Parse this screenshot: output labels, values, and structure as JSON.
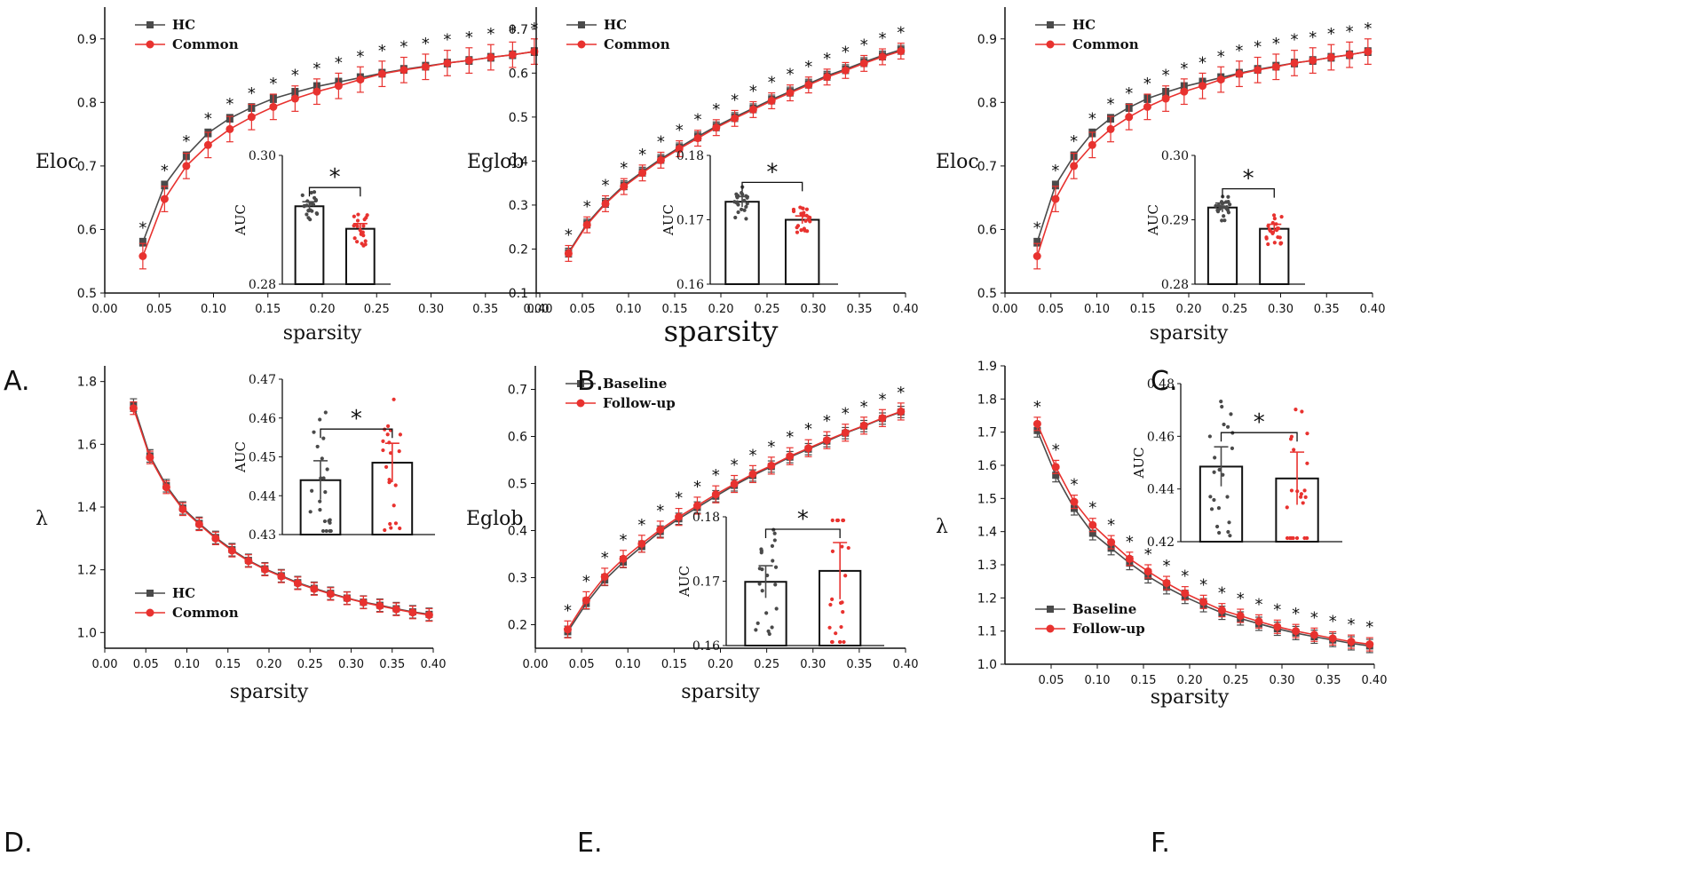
{
  "colors": {
    "hc": "#4a4a4a",
    "patient": "#e8322f",
    "axis": "#111111"
  },
  "x_values": [
    0.035,
    0.055,
    0.075,
    0.095,
    0.115,
    0.135,
    0.155,
    0.175,
    0.195,
    0.215,
    0.235,
    0.255,
    0.275,
    0.295,
    0.315,
    0.335,
    0.355,
    0.375,
    0.395
  ],
  "chart_data": [
    {
      "panel": "A.",
      "type": "line",
      "xlabel": "sparsity",
      "ylabel": "Eloc",
      "xlim": [
        0.0,
        0.4
      ],
      "ylim": [
        0.5,
        0.95
      ],
      "xticks": [
        "0.00",
        "0.05",
        "0.10",
        "0.15",
        "0.20",
        "0.25",
        "0.30",
        "0.35",
        "0.40"
      ],
      "yticks": [
        "0.5",
        "0.6",
        "0.7",
        "0.8",
        "0.9"
      ],
      "legend": [
        "HC",
        "Common"
      ],
      "legend_pos": "top-left",
      "series": [
        {
          "name": "HC",
          "values": [
            0.58,
            0.67,
            0.716,
            0.752,
            0.775,
            0.792,
            0.806,
            0.816,
            0.825,
            0.832,
            0.839,
            0.846,
            0.852,
            0.857,
            0.862,
            0.866,
            0.871,
            0.875,
            0.88
          ],
          "err": 0.006
        },
        {
          "name": "Common",
          "values": [
            0.558,
            0.648,
            0.7,
            0.733,
            0.758,
            0.777,
            0.793,
            0.806,
            0.817,
            0.826,
            0.836,
            0.845,
            0.851,
            0.856,
            0.862,
            0.866,
            0.871,
            0.875,
            0.88
          ],
          "err": 0.02
        }
      ],
      "stars": "*",
      "inset": {
        "ylabel": "AUC",
        "ylim": [
          0.28,
          0.3
        ],
        "yticks": [
          "0.28",
          "0.30"
        ],
        "bars": [
          0.2921,
          0.2886
        ],
        "errs": [
          0.0007,
          0.0008
        ],
        "sig": "*"
      }
    },
    {
      "panel": "B.",
      "type": "line",
      "xlabel": "sparsity",
      "ylabel": "Eglob",
      "xlim": [
        0.0,
        0.4
      ],
      "ylim": [
        0.1,
        0.75
      ],
      "xticks": [
        "0.00",
        "0.05",
        "0.10",
        "0.15",
        "0.20",
        "0.25",
        "0.30",
        "0.35",
        "0.40"
      ],
      "yticks": [
        "0.1",
        "0.2",
        "0.3",
        "0.4",
        "0.5",
        "0.6",
        "0.7"
      ],
      "legend": [
        "HC",
        "Common"
      ],
      "legend_pos": "top-left",
      "series": [
        {
          "name": "HC",
          "values": [
            0.192,
            0.258,
            0.305,
            0.345,
            0.376,
            0.405,
            0.431,
            0.456,
            0.479,
            0.5,
            0.52,
            0.54,
            0.558,
            0.576,
            0.594,
            0.609,
            0.625,
            0.64,
            0.653
          ],
          "err": 0.01
        },
        {
          "name": "Common",
          "values": [
            0.19,
            0.255,
            0.303,
            0.342,
            0.373,
            0.402,
            0.428,
            0.452,
            0.476,
            0.497,
            0.517,
            0.537,
            0.555,
            0.573,
            0.591,
            0.606,
            0.622,
            0.637,
            0.65
          ],
          "err": 0.018
        }
      ],
      "stars": "*",
      "inset": {
        "ylabel": "AUC",
        "ylim": [
          0.16,
          0.18
        ],
        "yticks": [
          "0.16",
          "0.17",
          "0.18"
        ],
        "bars": [
          0.1728,
          0.17
        ],
        "errs": [
          0.0008,
          0.0006
        ],
        "sig": "*"
      }
    },
    {
      "panel": "C.",
      "type": "line",
      "xlabel": "sparsity",
      "ylabel": "Eloc",
      "xlim": [
        0.0,
        0.4
      ],
      "ylim": [
        0.5,
        0.95
      ],
      "xticks": [
        "0.00",
        "0.05",
        "0.10",
        "0.15",
        "0.20",
        "0.25",
        "0.30",
        "0.35",
        "0.40"
      ],
      "yticks": [
        "0.5",
        "0.6",
        "0.7",
        "0.8",
        "0.9"
      ],
      "legend": [
        "HC",
        "Common"
      ],
      "legend_pos": "top-left",
      "series": [
        {
          "name": "HC",
          "values": [
            0.58,
            0.67,
            0.716,
            0.752,
            0.775,
            0.792,
            0.806,
            0.816,
            0.825,
            0.832,
            0.839,
            0.846,
            0.852,
            0.857,
            0.862,
            0.866,
            0.871,
            0.875,
            0.88
          ],
          "err": 0.006
        },
        {
          "name": "Common",
          "values": [
            0.558,
            0.648,
            0.7,
            0.733,
            0.758,
            0.777,
            0.793,
            0.806,
            0.817,
            0.826,
            0.836,
            0.845,
            0.851,
            0.856,
            0.862,
            0.866,
            0.871,
            0.875,
            0.88
          ],
          "err": 0.02
        }
      ],
      "stars": "*",
      "inset": {
        "ylabel": "AUC",
        "ylim": [
          0.28,
          0.3
        ],
        "yticks": [
          "0.28",
          "0.29",
          "0.30"
        ],
        "bars": [
          0.2919,
          0.2886
        ],
        "errs": [
          0.0007,
          0.0007
        ],
        "sig": "*"
      }
    },
    {
      "panel": "D.",
      "type": "line",
      "xlabel": "sparsity",
      "ylabel": "λ",
      "xlim": [
        0.0,
        0.4
      ],
      "ylim": [
        0.95,
        1.85
      ],
      "xticks": [
        "0.00",
        "0.05",
        "0.10",
        "0.15",
        "0.20",
        "0.25",
        "0.30",
        "0.35",
        "0.40"
      ],
      "yticks": [
        "1.0",
        "1.2",
        "1.4",
        "1.6",
        "1.8"
      ],
      "legend": [
        "HC",
        "Common"
      ],
      "legend_pos": "bottom-left",
      "series": [
        {
          "name": "HC",
          "values": [
            1.725,
            1.563,
            1.468,
            1.397,
            1.348,
            1.303,
            1.264,
            1.23,
            1.203,
            1.181,
            1.159,
            1.141,
            1.125,
            1.11,
            1.097,
            1.087,
            1.076,
            1.066,
            1.058
          ],
          "err": 0.02
        },
        {
          "name": "Common",
          "values": [
            1.715,
            1.558,
            1.463,
            1.393,
            1.345,
            1.3,
            1.261,
            1.228,
            1.201,
            1.179,
            1.157,
            1.139,
            1.123,
            1.109,
            1.096,
            1.085,
            1.074,
            1.064,
            1.056
          ],
          "err": 0.02
        }
      ],
      "stars": "",
      "inset": {
        "ylabel": "AUC",
        "ylim": [
          0.43,
          0.47
        ],
        "yticks": [
          "0.43",
          "0.44",
          "0.45",
          "0.46",
          "0.47"
        ],
        "bars": [
          0.444,
          0.4485
        ],
        "errs": [
          0.005,
          0.005
        ],
        "sig": "*"
      }
    },
    {
      "panel": "E.",
      "type": "line",
      "xlabel": "sparsity",
      "ylabel": "Eglob",
      "xlim": [
        0.0,
        0.4
      ],
      "ylim": [
        0.15,
        0.75
      ],
      "xticks": [
        "0.00",
        "0.05",
        "0.10",
        "0.15",
        "0.20",
        "0.25",
        "0.30",
        "0.35",
        "0.40"
      ],
      "yticks": [
        "0.2",
        "0.3",
        "0.4",
        "0.5",
        "0.6",
        "0.7"
      ],
      "legend": [
        "Baseline",
        "Follow-up"
      ],
      "legend_pos": "top-left",
      "series": [
        {
          "name": "Baseline",
          "values": [
            0.185,
            0.245,
            0.295,
            0.333,
            0.366,
            0.398,
            0.425,
            0.449,
            0.473,
            0.496,
            0.517,
            0.536,
            0.556,
            0.573,
            0.59,
            0.607,
            0.622,
            0.638,
            0.652
          ],
          "err": 0.012
        },
        {
          "name": "Follow-up",
          "values": [
            0.19,
            0.252,
            0.302,
            0.34,
            0.372,
            0.402,
            0.429,
            0.453,
            0.477,
            0.499,
            0.52,
            0.538,
            0.558,
            0.575,
            0.592,
            0.608,
            0.623,
            0.639,
            0.653
          ],
          "err": 0.018
        }
      ],
      "stars": "*",
      "inset": {
        "ylabel": "AUC",
        "ylim": [
          0.16,
          0.18
        ],
        "yticks": [
          "0.16",
          "0.17",
          "0.18"
        ],
        "bars": [
          0.1699,
          0.1716
        ],
        "errs": [
          0.0025,
          0.0044
        ],
        "sig": "*"
      }
    },
    {
      "panel": "F.",
      "type": "line",
      "xlabel": "sparsity",
      "ylabel": "λ",
      "xlim": [
        0.0,
        0.4
      ],
      "ylim": [
        1.0,
        1.9
      ],
      "xticks": [
        "0.05",
        "0.10",
        "0.15",
        "0.20",
        "0.25",
        "0.30",
        "0.35",
        "0.40"
      ],
      "yticks": [
        "1.0",
        "1.1",
        "1.2",
        "1.3",
        "1.4",
        "1.5",
        "1.6",
        "1.7",
        "1.8",
        "1.9"
      ],
      "legend": [
        "Baseline",
        "Follow-up"
      ],
      "legend_pos": "bottom-left",
      "series": [
        {
          "name": "Baseline",
          "values": [
            1.705,
            1.57,
            1.47,
            1.395,
            1.35,
            1.305,
            1.265,
            1.232,
            1.203,
            1.178,
            1.155,
            1.138,
            1.122,
            1.107,
            1.094,
            1.083,
            1.073,
            1.063,
            1.055
          ],
          "err": 0.02
        },
        {
          "name": "Follow-up",
          "values": [
            1.725,
            1.595,
            1.49,
            1.42,
            1.368,
            1.318,
            1.28,
            1.245,
            1.214,
            1.188,
            1.163,
            1.146,
            1.129,
            1.113,
            1.1,
            1.089,
            1.078,
            1.068,
            1.06
          ],
          "err": 0.02
        }
      ],
      "stars": "*",
      "inset": {
        "ylabel": "AUC",
        "ylim": [
          0.42,
          0.48
        ],
        "yticks": [
          "0.42",
          "0.44",
          "0.46",
          "0.48"
        ],
        "bars": [
          0.4485,
          0.444
        ],
        "errs": [
          0.0075,
          0.01
        ],
        "sig": "*"
      }
    }
  ]
}
